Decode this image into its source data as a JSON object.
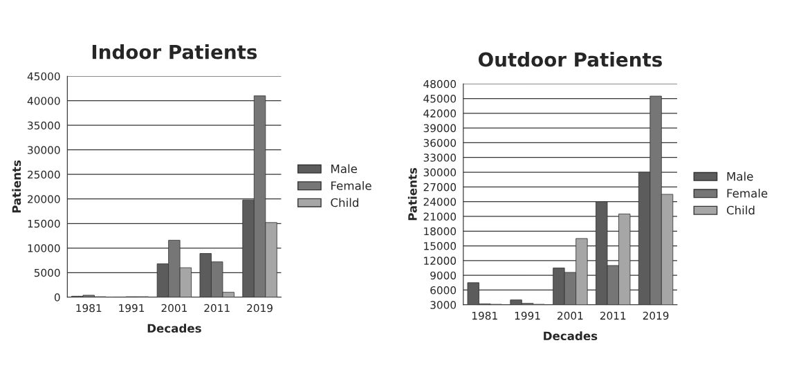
{
  "chart_data": [
    {
      "type": "bar",
      "title": "Indoor Patients",
      "xlabel": "Decades",
      "ylabel": "Patients",
      "categories": [
        "1981",
        "1991",
        "2001",
        "2011",
        "2019"
      ],
      "series": [
        {
          "name": "Male",
          "color": "#5c5c5c",
          "values": [
            200,
            null,
            6800,
            8900,
            19800
          ]
        },
        {
          "name": "Female",
          "color": "#767676",
          "values": [
            400,
            100,
            11600,
            7200,
            41000
          ]
        },
        {
          "name": "Child",
          "color": "#a6a6a6",
          "values": [
            100,
            100,
            6000,
            1000,
            15200
          ]
        }
      ],
      "ylim": [
        0,
        45000
      ],
      "yticks": [
        0,
        5000,
        10000,
        15000,
        20000,
        25000,
        30000,
        35000,
        40000,
        45000
      ],
      "grid": "y",
      "legend": "right"
    },
    {
      "type": "bar",
      "title": "Outdoor Patients",
      "xlabel": "Decades",
      "ylabel": "Patients",
      "categories": [
        "1981",
        "1991",
        "2001",
        "2011",
        "2019"
      ],
      "series": [
        {
          "name": "Male",
          "color": "#5c5c5c",
          "values": [
            7500,
            4000,
            10500,
            24000,
            30000
          ]
        },
        {
          "name": "Female",
          "color": "#767676",
          "values": [
            3200,
            3300,
            9600,
            11000,
            45500
          ]
        },
        {
          "name": "Child",
          "color": "#a6a6a6",
          "values": [
            3100,
            3100,
            16500,
            21500,
            25500
          ]
        }
      ],
      "ylim": [
        3000,
        48000
      ],
      "yticks": [
        3000,
        6000,
        9000,
        12000,
        15000,
        18000,
        21000,
        24000,
        27000,
        30000,
        33000,
        36000,
        39000,
        42000,
        45000,
        48000
      ],
      "grid": "y",
      "legend": "right"
    }
  ]
}
